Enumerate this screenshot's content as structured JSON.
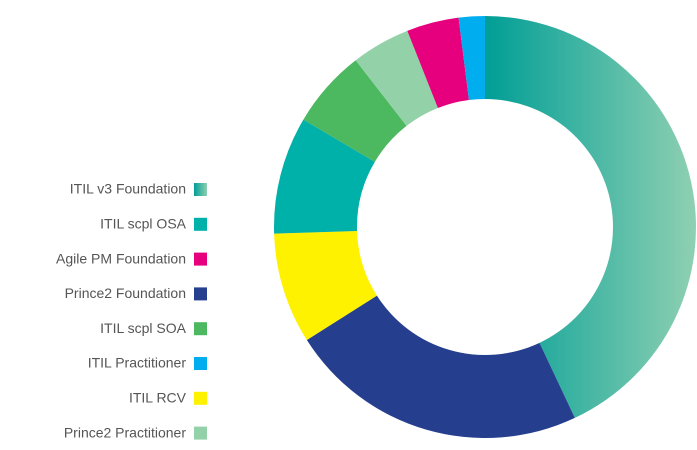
{
  "chart_data": {
    "type": "donut",
    "categories": [
      "ITIL v3 Foundation",
      "Prince2 Foundation",
      "ITIL RCV",
      "ITIL scpl OSA",
      "ITIL scpl SOA",
      "Prince2 Practitioner",
      "Agile PM Foundation",
      "ITIL Practitioner"
    ],
    "values": [
      43,
      23,
      8.5,
      9,
      6,
      4.5,
      4,
      2
    ],
    "colors": [
      [
        "#009e96",
        "#8fd0b2"
      ],
      "#253f8e",
      "#fff200",
      "#00b1a9",
      "#4cb860",
      "#93d2a8",
      "#e6007e",
      "#00aeef"
    ],
    "legend": [
      "ITIL v3 Foundation",
      "ITIL scpl OSA",
      "Agile PM Foundation",
      "Prince2 Foundation",
      "ITIL scpl SOA",
      "ITIL Practitioner",
      "ITIL RCV",
      "Prince2 Practitioner"
    ]
  }
}
